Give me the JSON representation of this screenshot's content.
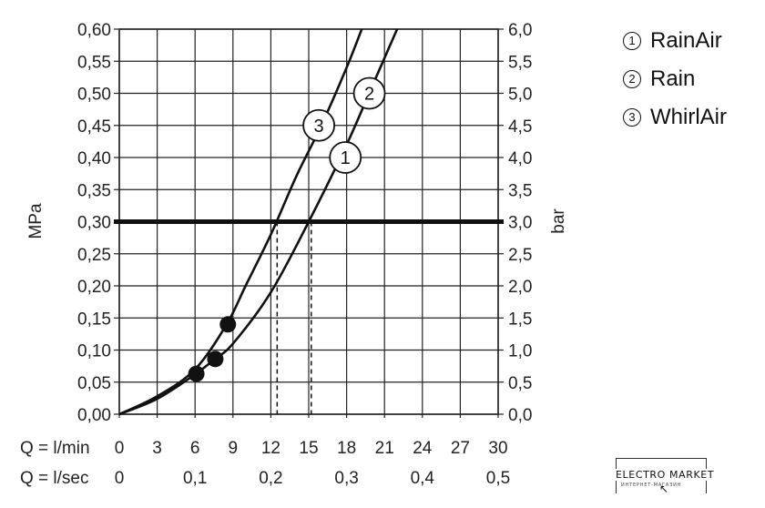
{
  "chart_data": {
    "type": "line",
    "x_flow": {
      "label": "Q = l/min",
      "ticks": [
        0,
        3,
        6,
        9,
        12,
        15,
        18,
        21,
        24,
        27,
        30
      ],
      "tick_labels": [
        "0",
        "3",
        "6",
        "9",
        "12",
        "15",
        "18",
        "21",
        "24",
        "27",
        "30"
      ],
      "range": [
        0,
        30
      ]
    },
    "x_flow_sec": {
      "label": "Q = l/sec",
      "ticks": [
        0,
        0.1,
        0.2,
        0.3,
        0.4,
        0.5
      ],
      "tick_labels": [
        "0",
        "0,1",
        "0,2",
        "0,3",
        "0,4",
        "0,5"
      ]
    },
    "y_left": {
      "label": "MPa",
      "range": [
        0,
        0.6
      ],
      "ticks": [
        0,
        0.05,
        0.1,
        0.15,
        0.2,
        0.25,
        0.3,
        0.35,
        0.4,
        0.45,
        0.5,
        0.55,
        0.6
      ],
      "tick_labels": [
        "0,00",
        "0,05",
        "0,10",
        "0,15",
        "0,20",
        "0,25",
        "0,30",
        "0,35",
        "0,40",
        "0,45",
        "0,50",
        "0,55",
        "0,60"
      ]
    },
    "y_right": {
      "label": "bar",
      "range": [
        0,
        6
      ],
      "tick_labels": [
        "0,0",
        "0,5",
        "1,0",
        "1,5",
        "2,0",
        "2,5",
        "3,0",
        "3,5",
        "4,0",
        "4,5",
        "5,0",
        "5,5",
        "6,0"
      ]
    },
    "grid": true,
    "reference_line": {
      "y": 0.3
    },
    "drop_lines": [
      {
        "x": 12.5,
        "y": 0.3
      },
      {
        "x": 15.2,
        "y": 0.3
      }
    ],
    "curve_lower": {
      "x": [
        0,
        3,
        6,
        7.5,
        9,
        12,
        15,
        18,
        20,
        22
      ],
      "y": [
        0,
        0.024,
        0.062,
        0.085,
        0.11,
        0.19,
        0.3,
        0.42,
        0.51,
        0.6
      ]
    },
    "curve_upper": {
      "x": [
        0,
        3,
        6,
        8.5,
        10,
        12,
        14,
        16,
        18,
        19.2
      ],
      "y": [
        0,
        0.028,
        0.07,
        0.14,
        0.2,
        0.28,
        0.37,
        0.45,
        0.54,
        0.6
      ]
    },
    "dots": [
      {
        "x": 6.1,
        "y": 0.063
      },
      {
        "x": 7.6,
        "y": 0.086
      },
      {
        "x": 8.6,
        "y": 0.14
      }
    ],
    "curve_markers": [
      {
        "label": "1",
        "x": 17.9,
        "y": 0.4
      },
      {
        "label": "2",
        "x": 19.8,
        "y": 0.5
      },
      {
        "label": "3",
        "x": 15.8,
        "y": 0.45
      }
    ],
    "legend": [
      {
        "num": "1",
        "name": "RainAir"
      },
      {
        "num": "2",
        "name": "Rain"
      },
      {
        "num": "3",
        "name": "WhirlAir"
      }
    ],
    "legend_position": "top-right"
  },
  "logo": {
    "text": "ELECTRO MARKET",
    "subtext": "ИНТЕРНЕТ-МАГАЗИН"
  }
}
